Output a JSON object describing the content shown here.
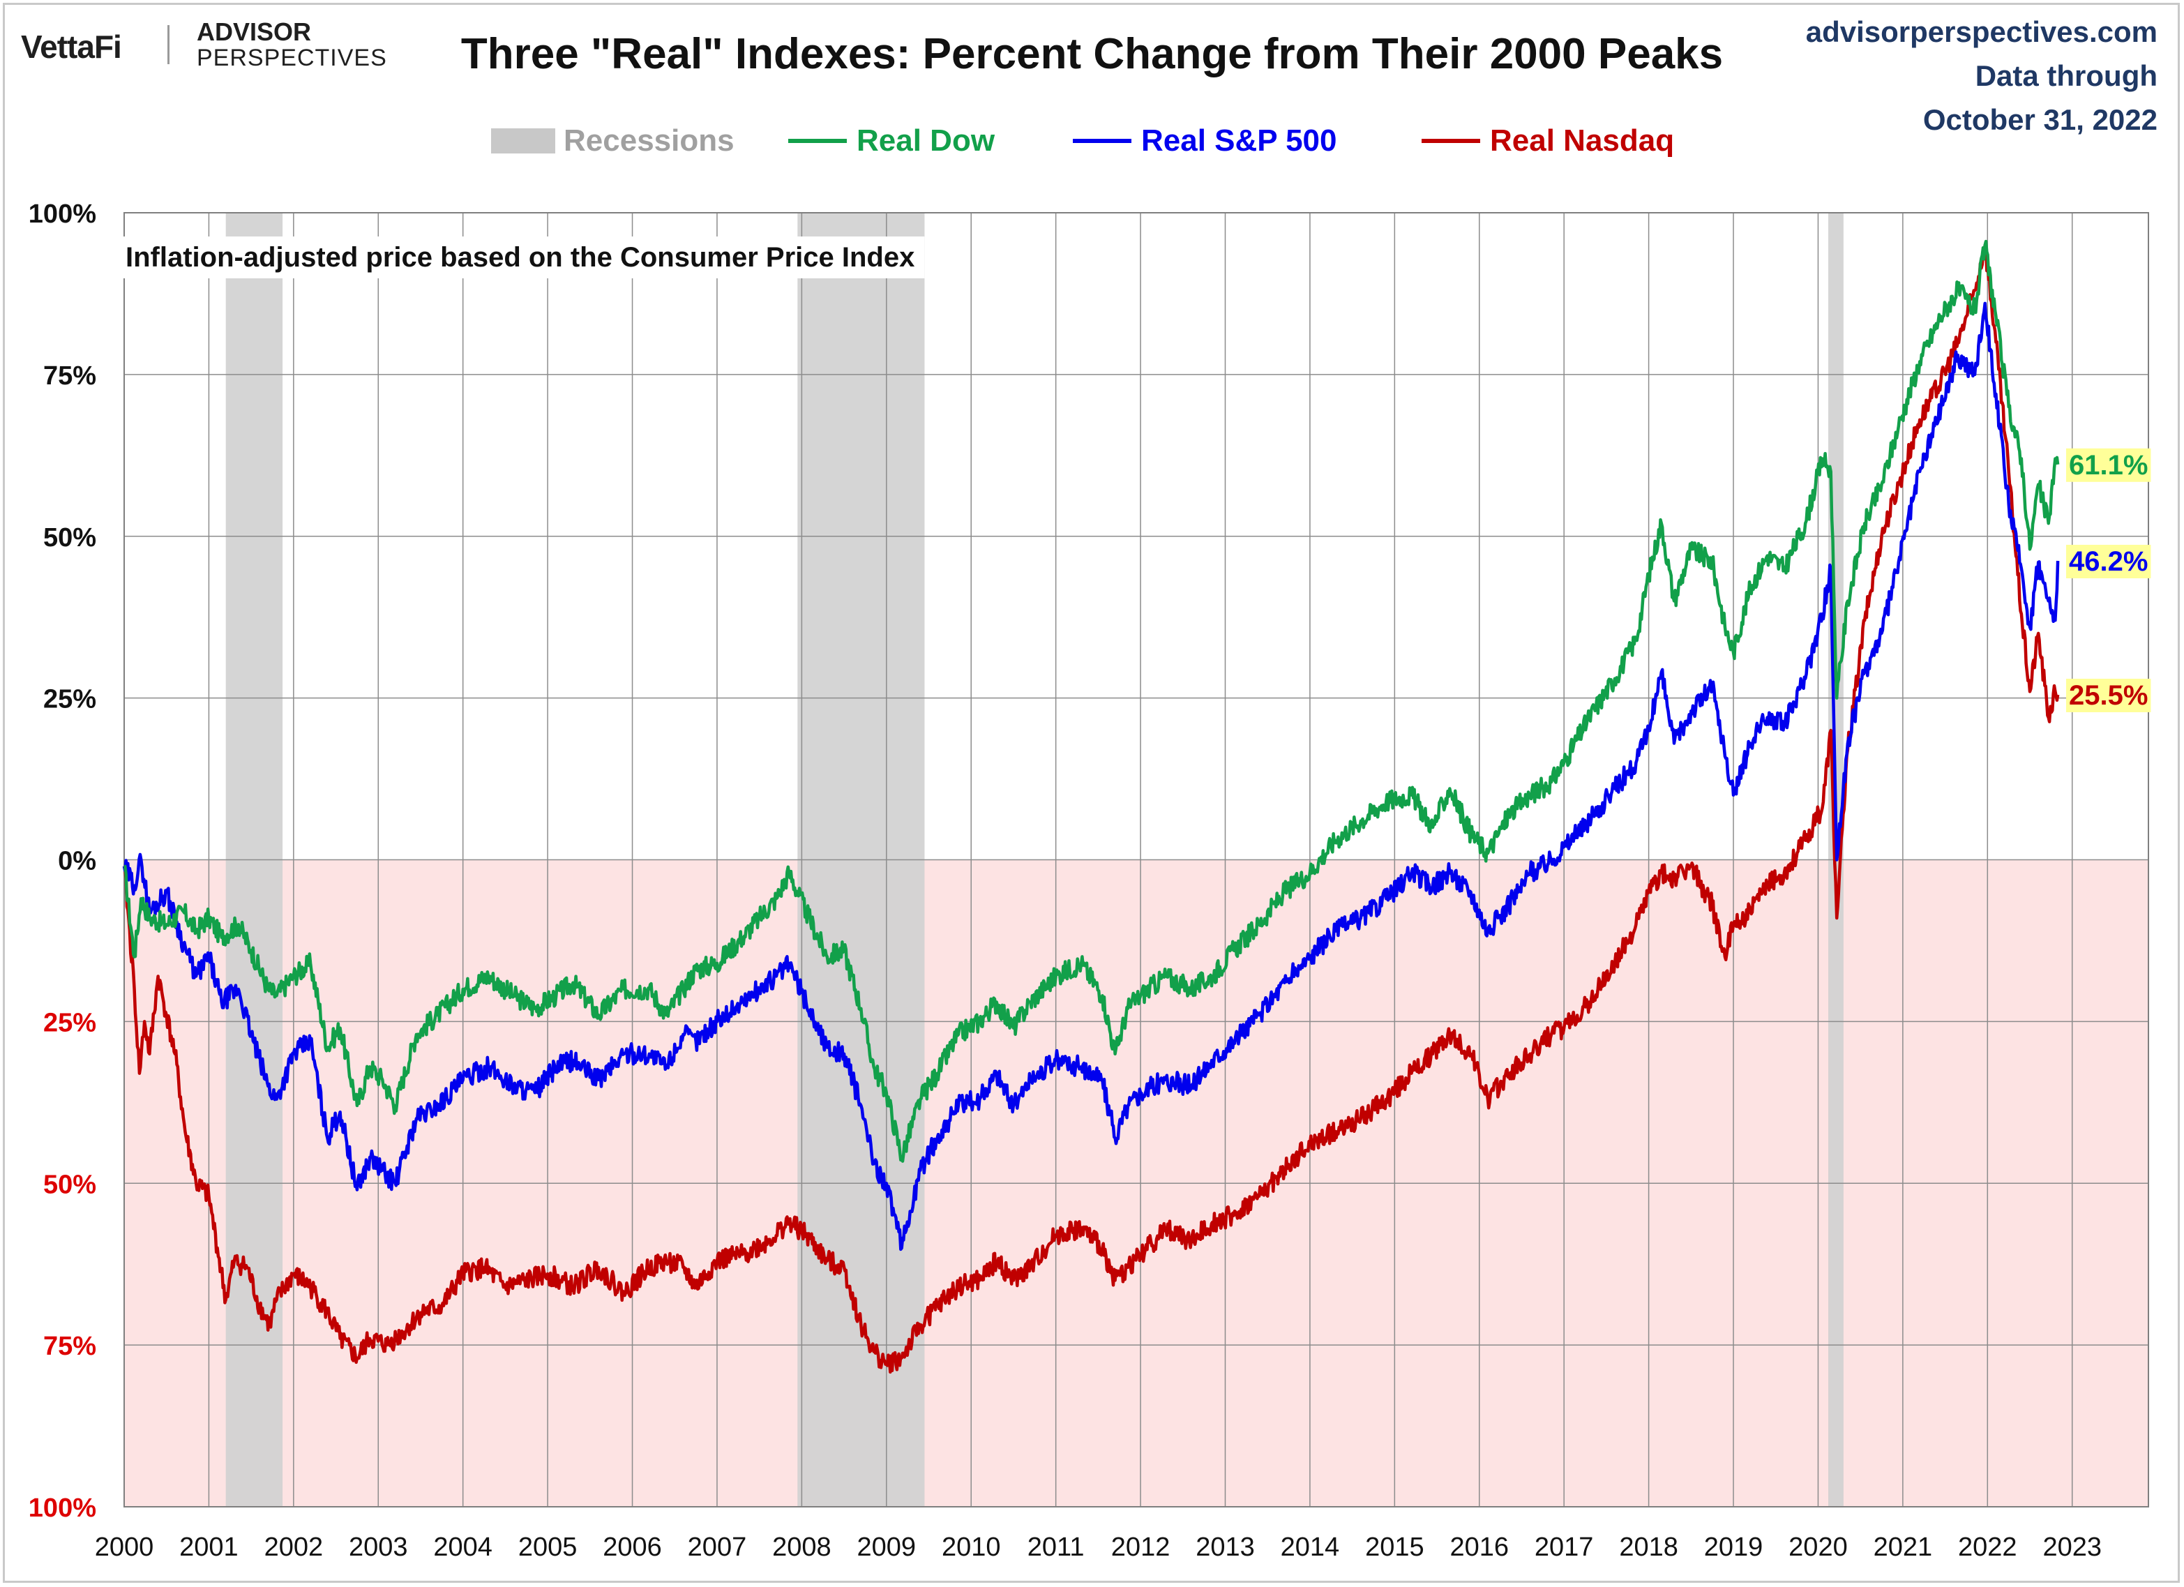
{
  "header": {
    "brand_vettafi": "VettaFi",
    "brand_advisor": "ADVISOR",
    "brand_perspectives": "PERSPECTIVES",
    "title": "Three \"Real\" Indexes: Percent Change from Their 2000 Peaks",
    "source_site": "advisorperspectives.com",
    "data_through_label": "Data through",
    "data_through_date": "October 31, 2022"
  },
  "colors": {
    "dow": "#12a04a",
    "sp500": "#0000ee",
    "nasdaq": "#c00000",
    "recession": "#d0d0d0",
    "negative_zone": "#fde3e3",
    "grid": "#8c8c8c",
    "axis_positive_text": "#111111",
    "axis_negative_text": "#dd0000"
  },
  "chart_data": {
    "type": "line",
    "title": "Three \"Real\" Indexes: Percent Change from Their 2000 Peaks",
    "annotation": "Inflation-adjusted  price based on the Consumer Price Index",
    "xlabel": "",
    "ylabel": "",
    "x_ticks": [
      "2000",
      "2001",
      "2002",
      "2003",
      "2004",
      "2005",
      "2006",
      "2007",
      "2008",
      "2009",
      "2010",
      "2011",
      "2012",
      "2013",
      "2014",
      "2015",
      "2016",
      "2017",
      "2018",
      "2019",
      "2020",
      "2021",
      "2022",
      "2023"
    ],
    "y_ticks": [
      {
        "value": 100,
        "label": "100%",
        "negative": false
      },
      {
        "value": 75,
        "label": "75%",
        "negative": false
      },
      {
        "value": 50,
        "label": "50%",
        "negative": false
      },
      {
        "value": 25,
        "label": "25%",
        "negative": false
      },
      {
        "value": 0,
        "label": "0%",
        "negative": false
      },
      {
        "value": -25,
        "label": "25%",
        "negative": true
      },
      {
        "value": -50,
        "label": "50%",
        "negative": true
      },
      {
        "value": -75,
        "label": "75%",
        "negative": true
      },
      {
        "value": -100,
        "label": "100%",
        "negative": true
      }
    ],
    "xlim": [
      2000.0,
      2023.9
    ],
    "ylim": [
      -100,
      100
    ],
    "grid": true,
    "legend_position": "top-center",
    "legend": [
      {
        "label": "Recessions",
        "kind": "box",
        "color": "#c8c8c8",
        "text_color": "#a0a0a0"
      },
      {
        "label": "Real Dow",
        "kind": "line",
        "color": "#12a04a",
        "text_color": "#12a04a"
      },
      {
        "label": "Real S&P 500",
        "kind": "line",
        "color": "#0000ee",
        "text_color": "#0000ee"
      },
      {
        "label": "Real Nasdaq",
        "kind": "line",
        "color": "#c00000",
        "text_color": "#c00000"
      }
    ],
    "recessions": [
      [
        2001.2,
        2001.87
      ],
      [
        2007.95,
        2009.45
      ],
      [
        2020.12,
        2020.3
      ]
    ],
    "series": [
      {
        "name": "Real Dow",
        "color": "#12a04a",
        "end_label": "61.1%",
        "end_label_bg": "#ffff99",
        "end_label_color": "#12a04a",
        "x": [
          2000.0,
          2000.12,
          2000.2,
          2000.3,
          2000.5,
          2000.7,
          2000.85,
          2001.0,
          2001.15,
          2001.35,
          2001.5,
          2001.7,
          2001.8,
          2002.0,
          2002.2,
          2002.4,
          2002.55,
          2002.75,
          2002.9,
          2003.05,
          2003.2,
          2003.45,
          2003.7,
          2004.0,
          2004.3,
          2004.6,
          2004.85,
          2005.1,
          2005.3,
          2005.6,
          2005.9,
          2006.2,
          2006.4,
          2006.6,
          2006.75,
          2007.0,
          2007.3,
          2007.5,
          2007.7,
          2007.85,
          2008.05,
          2008.3,
          2008.5,
          2008.7,
          2008.85,
          2009.0,
          2009.18,
          2009.4,
          2009.6,
          2009.85,
          2010.1,
          2010.3,
          2010.5,
          2010.7,
          2011.0,
          2011.3,
          2011.55,
          2011.7,
          2011.85,
          2012.0,
          2012.3,
          2012.6,
          2012.85,
          2013.1,
          2013.4,
          2013.7,
          2014.0,
          2014.3,
          2014.6,
          2014.9,
          2015.2,
          2015.45,
          2015.65,
          2015.9,
          2016.1,
          2016.35,
          2016.6,
          2016.85,
          2017.0,
          2017.3,
          2017.6,
          2017.85,
          2018.0,
          2018.15,
          2018.3,
          2018.5,
          2018.75,
          2018.9,
          2019.0,
          2019.2,
          2019.4,
          2019.6,
          2019.85,
          2020.05,
          2020.15,
          2020.22,
          2020.35,
          2020.55,
          2020.75,
          2020.95,
          2021.2,
          2021.45,
          2021.65,
          2021.85,
          2021.97,
          2022.1,
          2022.25,
          2022.4,
          2022.5,
          2022.6,
          2022.72,
          2022.8,
          2022.83
        ],
        "values": [
          -1,
          -15,
          -6,
          -9,
          -10,
          -8,
          -11,
          -9,
          -12,
          -10,
          -14,
          -20,
          -21,
          -18,
          -16,
          -29,
          -26,
          -38,
          -32,
          -34,
          -38,
          -27,
          -24,
          -20,
          -18,
          -21,
          -23,
          -21,
          -19,
          -24,
          -20,
          -20,
          -24,
          -20,
          -17,
          -16,
          -12,
          -9,
          -6,
          -2,
          -8,
          -15,
          -14,
          -23,
          -32,
          -36,
          -46,
          -37,
          -33,
          -27,
          -25,
          -22,
          -26,
          -22,
          -18,
          -16,
          -21,
          -30,
          -23,
          -21,
          -18,
          -20,
          -18,
          -14,
          -10,
          -5,
          -2,
          3,
          6,
          9,
          10,
          5,
          11,
          4,
          1,
          7,
          10,
          12,
          15,
          22,
          28,
          34,
          44,
          52,
          40,
          48,
          46,
          36,
          32,
          42,
          47,
          45,
          52,
          62,
          60,
          25,
          40,
          52,
          58,
          67,
          77,
          84,
          88,
          85,
          95,
          84,
          70,
          62,
          48,
          58,
          52,
          62,
          61.1
        ]
      },
      {
        "name": "Real S&P 500",
        "color": "#0000ee",
        "end_label": "46.2%",
        "end_label_bg": "#ffff99",
        "end_label_color": "#0000ee",
        "x": [
          2000.0,
          2000.12,
          2000.2,
          2000.3,
          2000.5,
          2000.7,
          2000.85,
          2001.0,
          2001.15,
          2001.35,
          2001.5,
          2001.7,
          2001.8,
          2002.0,
          2002.2,
          2002.4,
          2002.55,
          2002.75,
          2002.9,
          2003.05,
          2003.2,
          2003.45,
          2003.7,
          2004.0,
          2004.3,
          2004.6,
          2004.85,
          2005.1,
          2005.3,
          2005.6,
          2005.9,
          2006.2,
          2006.4,
          2006.6,
          2006.75,
          2007.0,
          2007.3,
          2007.5,
          2007.7,
          2007.85,
          2008.05,
          2008.3,
          2008.5,
          2008.7,
          2008.85,
          2009.0,
          2009.18,
          2009.4,
          2009.6,
          2009.85,
          2010.1,
          2010.3,
          2010.5,
          2010.7,
          2011.0,
          2011.3,
          2011.55,
          2011.7,
          2011.85,
          2012.0,
          2012.3,
          2012.6,
          2012.85,
          2013.1,
          2013.4,
          2013.7,
          2014.0,
          2014.3,
          2014.6,
          2014.9,
          2015.2,
          2015.45,
          2015.65,
          2015.9,
          2016.1,
          2016.35,
          2016.6,
          2016.85,
          2017.0,
          2017.3,
          2017.6,
          2017.85,
          2018.0,
          2018.15,
          2018.3,
          2018.5,
          2018.75,
          2018.9,
          2019.0,
          2019.2,
          2019.4,
          2019.6,
          2019.85,
          2020.05,
          2020.15,
          2020.22,
          2020.35,
          2020.55,
          2020.75,
          2020.95,
          2021.2,
          2021.45,
          2021.65,
          2021.85,
          2021.97,
          2022.1,
          2022.25,
          2022.4,
          2022.5,
          2022.6,
          2022.72,
          2022.8,
          2022.83
        ],
        "values": [
          -1,
          -4,
          0,
          -8,
          -5,
          -13,
          -18,
          -15,
          -22,
          -20,
          -27,
          -35,
          -37,
          -30,
          -28,
          -43,
          -39,
          -51,
          -46,
          -48,
          -50,
          -40,
          -38,
          -34,
          -32,
          -35,
          -36,
          -32,
          -31,
          -34,
          -30,
          -30,
          -32,
          -27,
          -28,
          -25,
          -22,
          -20,
          -18,
          -16,
          -22,
          -29,
          -30,
          -38,
          -47,
          -50,
          -60,
          -48,
          -43,
          -38,
          -37,
          -33,
          -38,
          -34,
          -31,
          -32,
          -34,
          -43,
          -38,
          -36,
          -34,
          -35,
          -31,
          -28,
          -24,
          -19,
          -15,
          -11,
          -9,
          -6,
          -2,
          -4,
          -2,
          -5,
          -11,
          -7,
          -2,
          0,
          2,
          6,
          11,
          15,
          20,
          29,
          18,
          23,
          27,
          16,
          10,
          18,
          22,
          21,
          28,
          38,
          45,
          0,
          18,
          29,
          35,
          46,
          60,
          70,
          78,
          75,
          86,
          72,
          55,
          45,
          36,
          46,
          40,
          37,
          46.2
        ]
      },
      {
        "name": "Real Nasdaq",
        "color": "#c00000",
        "end_label": "25.5%",
        "end_label_bg": "#ffff99",
        "end_label_color": "#c00000",
        "x": [
          2000.0,
          2000.12,
          2000.18,
          2000.24,
          2000.3,
          2000.4,
          2000.5,
          2000.6,
          2000.72,
          2000.85,
          2001.0,
          2001.1,
          2001.2,
          2001.3,
          2001.45,
          2001.6,
          2001.72,
          2001.8,
          2002.0,
          2002.2,
          2002.4,
          2002.55,
          2002.75,
          2002.9,
          2003.1,
          2003.3,
          2003.5,
          2003.75,
          2004.0,
          2004.25,
          2004.5,
          2004.75,
          2005.0,
          2005.3,
          2005.6,
          2005.9,
          2006.2,
          2006.4,
          2006.6,
          2006.75,
          2007.0,
          2007.3,
          2007.6,
          2007.85,
          2008.05,
          2008.3,
          2008.5,
          2008.7,
          2008.85,
          2009.0,
          2009.18,
          2009.4,
          2009.6,
          2009.85,
          2010.1,
          2010.3,
          2010.5,
          2010.7,
          2011.0,
          2011.3,
          2011.55,
          2011.7,
          2011.85,
          2012.0,
          2012.3,
          2012.6,
          2012.85,
          2013.1,
          2013.4,
          2013.7,
          2014.0,
          2014.3,
          2014.6,
          2014.9,
          2015.2,
          2015.45,
          2015.65,
          2015.9,
          2016.1,
          2016.35,
          2016.6,
          2016.85,
          2017.0,
          2017.3,
          2017.6,
          2017.85,
          2018.0,
          2018.15,
          2018.3,
          2018.5,
          2018.75,
          2018.9,
          2019.0,
          2019.2,
          2019.4,
          2019.6,
          2019.85,
          2020.05,
          2020.15,
          2020.22,
          2020.35,
          2020.55,
          2020.75,
          2020.95,
          2021.2,
          2021.45,
          2021.65,
          2021.85,
          2021.97,
          2022.1,
          2022.25,
          2022.4,
          2022.5,
          2022.6,
          2022.72,
          2022.8,
          2022.83
        ],
        "values": [
          -1,
          -20,
          -33,
          -25,
          -30,
          -18,
          -24,
          -30,
          -42,
          -50,
          -52,
          -60,
          -68,
          -62,
          -63,
          -69,
          -72,
          -68,
          -64,
          -66,
          -70,
          -74,
          -77,
          -74,
          -75,
          -73,
          -70,
          -69,
          -64,
          -63,
          -66,
          -65,
          -64,
          -66,
          -63,
          -67,
          -63,
          -62,
          -63,
          -66,
          -62,
          -61,
          -59,
          -56,
          -58,
          -62,
          -63,
          -72,
          -76,
          -78,
          -77,
          -72,
          -69,
          -66,
          -65,
          -62,
          -65,
          -63,
          -58,
          -57,
          -60,
          -65,
          -63,
          -61,
          -57,
          -59,
          -56,
          -55,
          -52,
          -48,
          -44,
          -42,
          -40,
          -37,
          -33,
          -30,
          -27,
          -30,
          -37,
          -33,
          -30,
          -27,
          -26,
          -22,
          -16,
          -10,
          -5,
          -2,
          -3,
          -1,
          -7,
          -15,
          -10,
          -8,
          -4,
          -2,
          3,
          8,
          20,
          -9,
          17,
          37,
          50,
          58,
          68,
          74,
          80,
          88,
          95,
          80,
          60,
          38,
          26,
          35,
          22,
          26,
          25.5
        ]
      }
    ]
  }
}
